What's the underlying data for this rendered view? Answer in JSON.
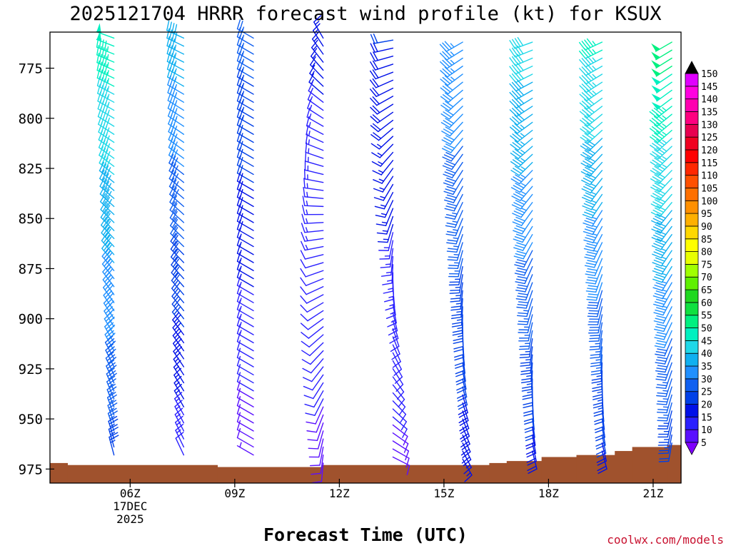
{
  "title": "2025121704 HRRR forecast wind profile (kt) for KSUX",
  "xlabel": "Forecast Time (UTC)",
  "credit": "coolwx.com/models",
  "chart_data": {
    "type": "wind-barb-profile",
    "title": "2025121704 HRRR forecast wind profile (kt) for KSUX",
    "xlabel": "Forecast Time (UTC)",
    "ylabel": "",
    "x_range_hours": [
      3.7,
      21.8
    ],
    "y_range_hpa": [
      757,
      982
    ],
    "y_ticks": [
      {
        "value": 775,
        "label": "775"
      },
      {
        "value": 800,
        "label": "800"
      },
      {
        "value": 825,
        "label": "825"
      },
      {
        "value": 850,
        "label": "850"
      },
      {
        "value": 875,
        "label": "875"
      },
      {
        "value": 900,
        "label": "900"
      },
      {
        "value": 925,
        "label": "925"
      },
      {
        "value": 950,
        "label": "950"
      },
      {
        "value": 975,
        "label": "975"
      }
    ],
    "x_ticks": [
      {
        "value": 6,
        "label": "06Z",
        "sub1": "17DEC",
        "sub2": "2025"
      },
      {
        "value": 9,
        "label": "09Z"
      },
      {
        "value": 12,
        "label": "12Z"
      },
      {
        "value": 15,
        "label": "15Z"
      },
      {
        "value": 18,
        "label": "18Z"
      },
      {
        "value": 21,
        "label": "21Z"
      }
    ],
    "color_scale_kt": [
      5,
      10,
      15,
      20,
      25,
      30,
      35,
      40,
      45,
      50,
      55,
      60,
      65,
      70,
      75,
      80,
      85,
      90,
      95,
      100,
      105,
      110,
      115,
      120,
      125,
      130,
      135,
      140,
      145,
      150
    ],
    "color_scale_colors": [
      "#7f00ff",
      "#5a10ff",
      "#2a20ff",
      "#0010e8",
      "#0040e8",
      "#1060f0",
      "#2090ff",
      "#10b0f0",
      "#20d8e8",
      "#00f0c0",
      "#00f080",
      "#10e040",
      "#20d820",
      "#60f000",
      "#a0ff00",
      "#e8ff00",
      "#ffff00",
      "#ffd800",
      "#ffb000",
      "#ff9000",
      "#ff7000",
      "#ff5000",
      "#ff2800",
      "#ff0000",
      "#f00020",
      "#e80050",
      "#ff0080",
      "#ff00b0",
      "#ff00e0",
      "#e000ff"
    ],
    "ground_hpa": [
      {
        "from": 3.7,
        "to": 4.2,
        "p": 972
      },
      {
        "from": 4.2,
        "to": 8.5,
        "p": 973
      },
      {
        "from": 8.5,
        "to": 11.5,
        "p": 974
      },
      {
        "from": 11.5,
        "to": 16.3,
        "p": 973
      },
      {
        "from": 16.3,
        "to": 16.8,
        "p": 972
      },
      {
        "from": 16.8,
        "to": 17.8,
        "p": 971
      },
      {
        "from": 17.8,
        "to": 18.8,
        "p": 969
      },
      {
        "from": 18.8,
        "to": 19.9,
        "p": 968
      },
      {
        "from": 19.9,
        "to": 20.4,
        "p": 966
      },
      {
        "from": 20.4,
        "to": 21.4,
        "p": 964
      },
      {
        "from": 21.4,
        "to": 21.8,
        "p": 963
      }
    ],
    "columns": [
      {
        "hour": 5.7,
        "p_top": 760,
        "p_bot": 968,
        "dir_top": 290,
        "dir_bot": 345,
        "spd_top": 48,
        "spd_bot": 24
      },
      {
        "hour": 7.7,
        "p_top": 760,
        "p_bot": 969,
        "dir_top": 295,
        "dir_bot": 335,
        "spd_top": 38,
        "spd_bot": 12
      },
      {
        "hour": 9.7,
        "p_top": 760,
        "p_bot": 971,
        "dir_top": 300,
        "dir_bot": 300,
        "spd_top": 27,
        "spd_bot": 7
      },
      {
        "hour": 11.7,
        "p_top": 760,
        "p_bot": 972,
        "dir_top": 330,
        "dir_bot": 185,
        "spd_top": 16,
        "spd_bot": 9
      },
      {
        "hour": 13.7,
        "p_top": 761,
        "p_bot": 972,
        "dir_top": 260,
        "dir_bot": 115,
        "spd_top": 20,
        "spd_bot": 9
      },
      {
        "hour": 15.7,
        "p_top": 762,
        "p_bot": 971,
        "dir_top": 240,
        "dir_bot": 150,
        "spd_top": 34,
        "spd_bot": 17
      },
      {
        "hour": 17.7,
        "p_top": 762,
        "p_bot": 969,
        "dir_top": 250,
        "dir_bot": 165,
        "spd_top": 42,
        "spd_bot": 18
      },
      {
        "hour": 19.7,
        "p_top": 762,
        "p_bot": 967,
        "dir_top": 245,
        "dir_bot": 165,
        "spd_top": 46,
        "spd_bot": 19
      },
      {
        "hour": 21.7,
        "p_top": 762,
        "p_bot": 962,
        "dir_top": 240,
        "dir_bot": 190,
        "spd_top": 52,
        "spd_bot": 22
      }
    ]
  }
}
